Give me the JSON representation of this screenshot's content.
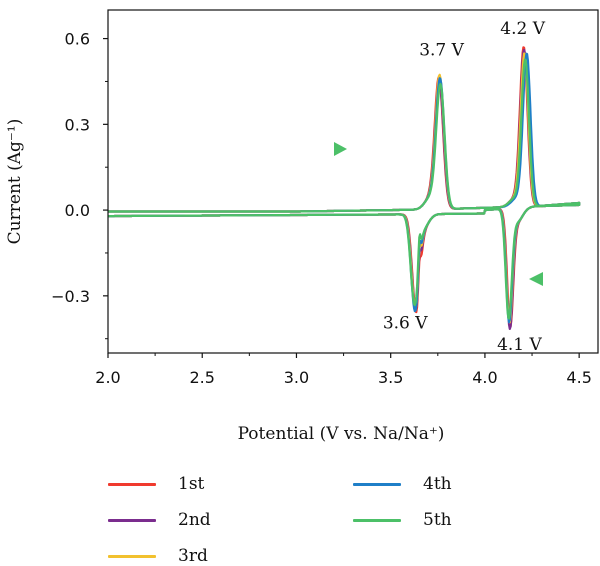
{
  "chart_data": {
    "type": "line",
    "title": "",
    "xlabel": "Potential (V vs. Na/Na⁺)",
    "ylabel": "Current (Ag⁻¹)",
    "xlim": [
      2.0,
      4.6
    ],
    "ylim": [
      -0.5,
      0.7
    ],
    "x_ticks": [
      "2.0",
      "2.5",
      "3.0",
      "3.5",
      "4.0",
      "4.5"
    ],
    "y_ticks": [
      "0.6",
      "0.3",
      "0.0",
      "−0.3"
    ],
    "grid": false,
    "legend_position": "bottom",
    "peak_labels": [
      {
        "text": "3.7 V",
        "x": 3.77,
        "y": 0.47
      },
      {
        "text": "4.2 V",
        "x": 4.2,
        "y": 0.56
      },
      {
        "text": "3.6 V",
        "x": 3.63,
        "y": -0.31
      },
      {
        "text": "4.1 V",
        "x": 4.13,
        "y": -0.37
      }
    ],
    "series": [
      {
        "name": "1st",
        "color": "#f03a2e",
        "anodic_peaks": [
          [
            3.76,
            0.45
          ],
          [
            4.21,
            0.55
          ]
        ],
        "cathodic_peaks": [
          [
            3.63,
            -0.32
          ],
          [
            4.13,
            -0.39
          ]
        ]
      },
      {
        "name": "2nd",
        "color": "#7b2d8e",
        "anodic_peaks": [
          [
            3.76,
            0.44
          ],
          [
            4.21,
            0.54
          ]
        ],
        "cathodic_peaks": [
          [
            3.63,
            -0.31
          ],
          [
            4.13,
            -0.4
          ]
        ]
      },
      {
        "name": "3rd",
        "color": "#f2c12e",
        "anodic_peaks": [
          [
            3.76,
            0.46
          ],
          [
            4.21,
            0.53
          ]
        ],
        "cathodic_peaks": [
          [
            3.63,
            -0.31
          ],
          [
            4.13,
            -0.38
          ]
        ]
      },
      {
        "name": "4th",
        "color": "#1f7fc8",
        "anodic_peaks": [
          [
            3.76,
            0.45
          ],
          [
            4.22,
            0.53
          ]
        ],
        "cathodic_peaks": [
          [
            3.63,
            -0.32
          ],
          [
            4.13,
            -0.38
          ]
        ]
      },
      {
        "name": "5th",
        "color": "#4cc068",
        "anodic_peaks": [
          [
            3.76,
            0.43
          ],
          [
            4.21,
            0.51
          ]
        ],
        "cathodic_peaks": [
          [
            3.63,
            -0.3
          ],
          [
            4.13,
            -0.37
          ]
        ]
      }
    ]
  }
}
